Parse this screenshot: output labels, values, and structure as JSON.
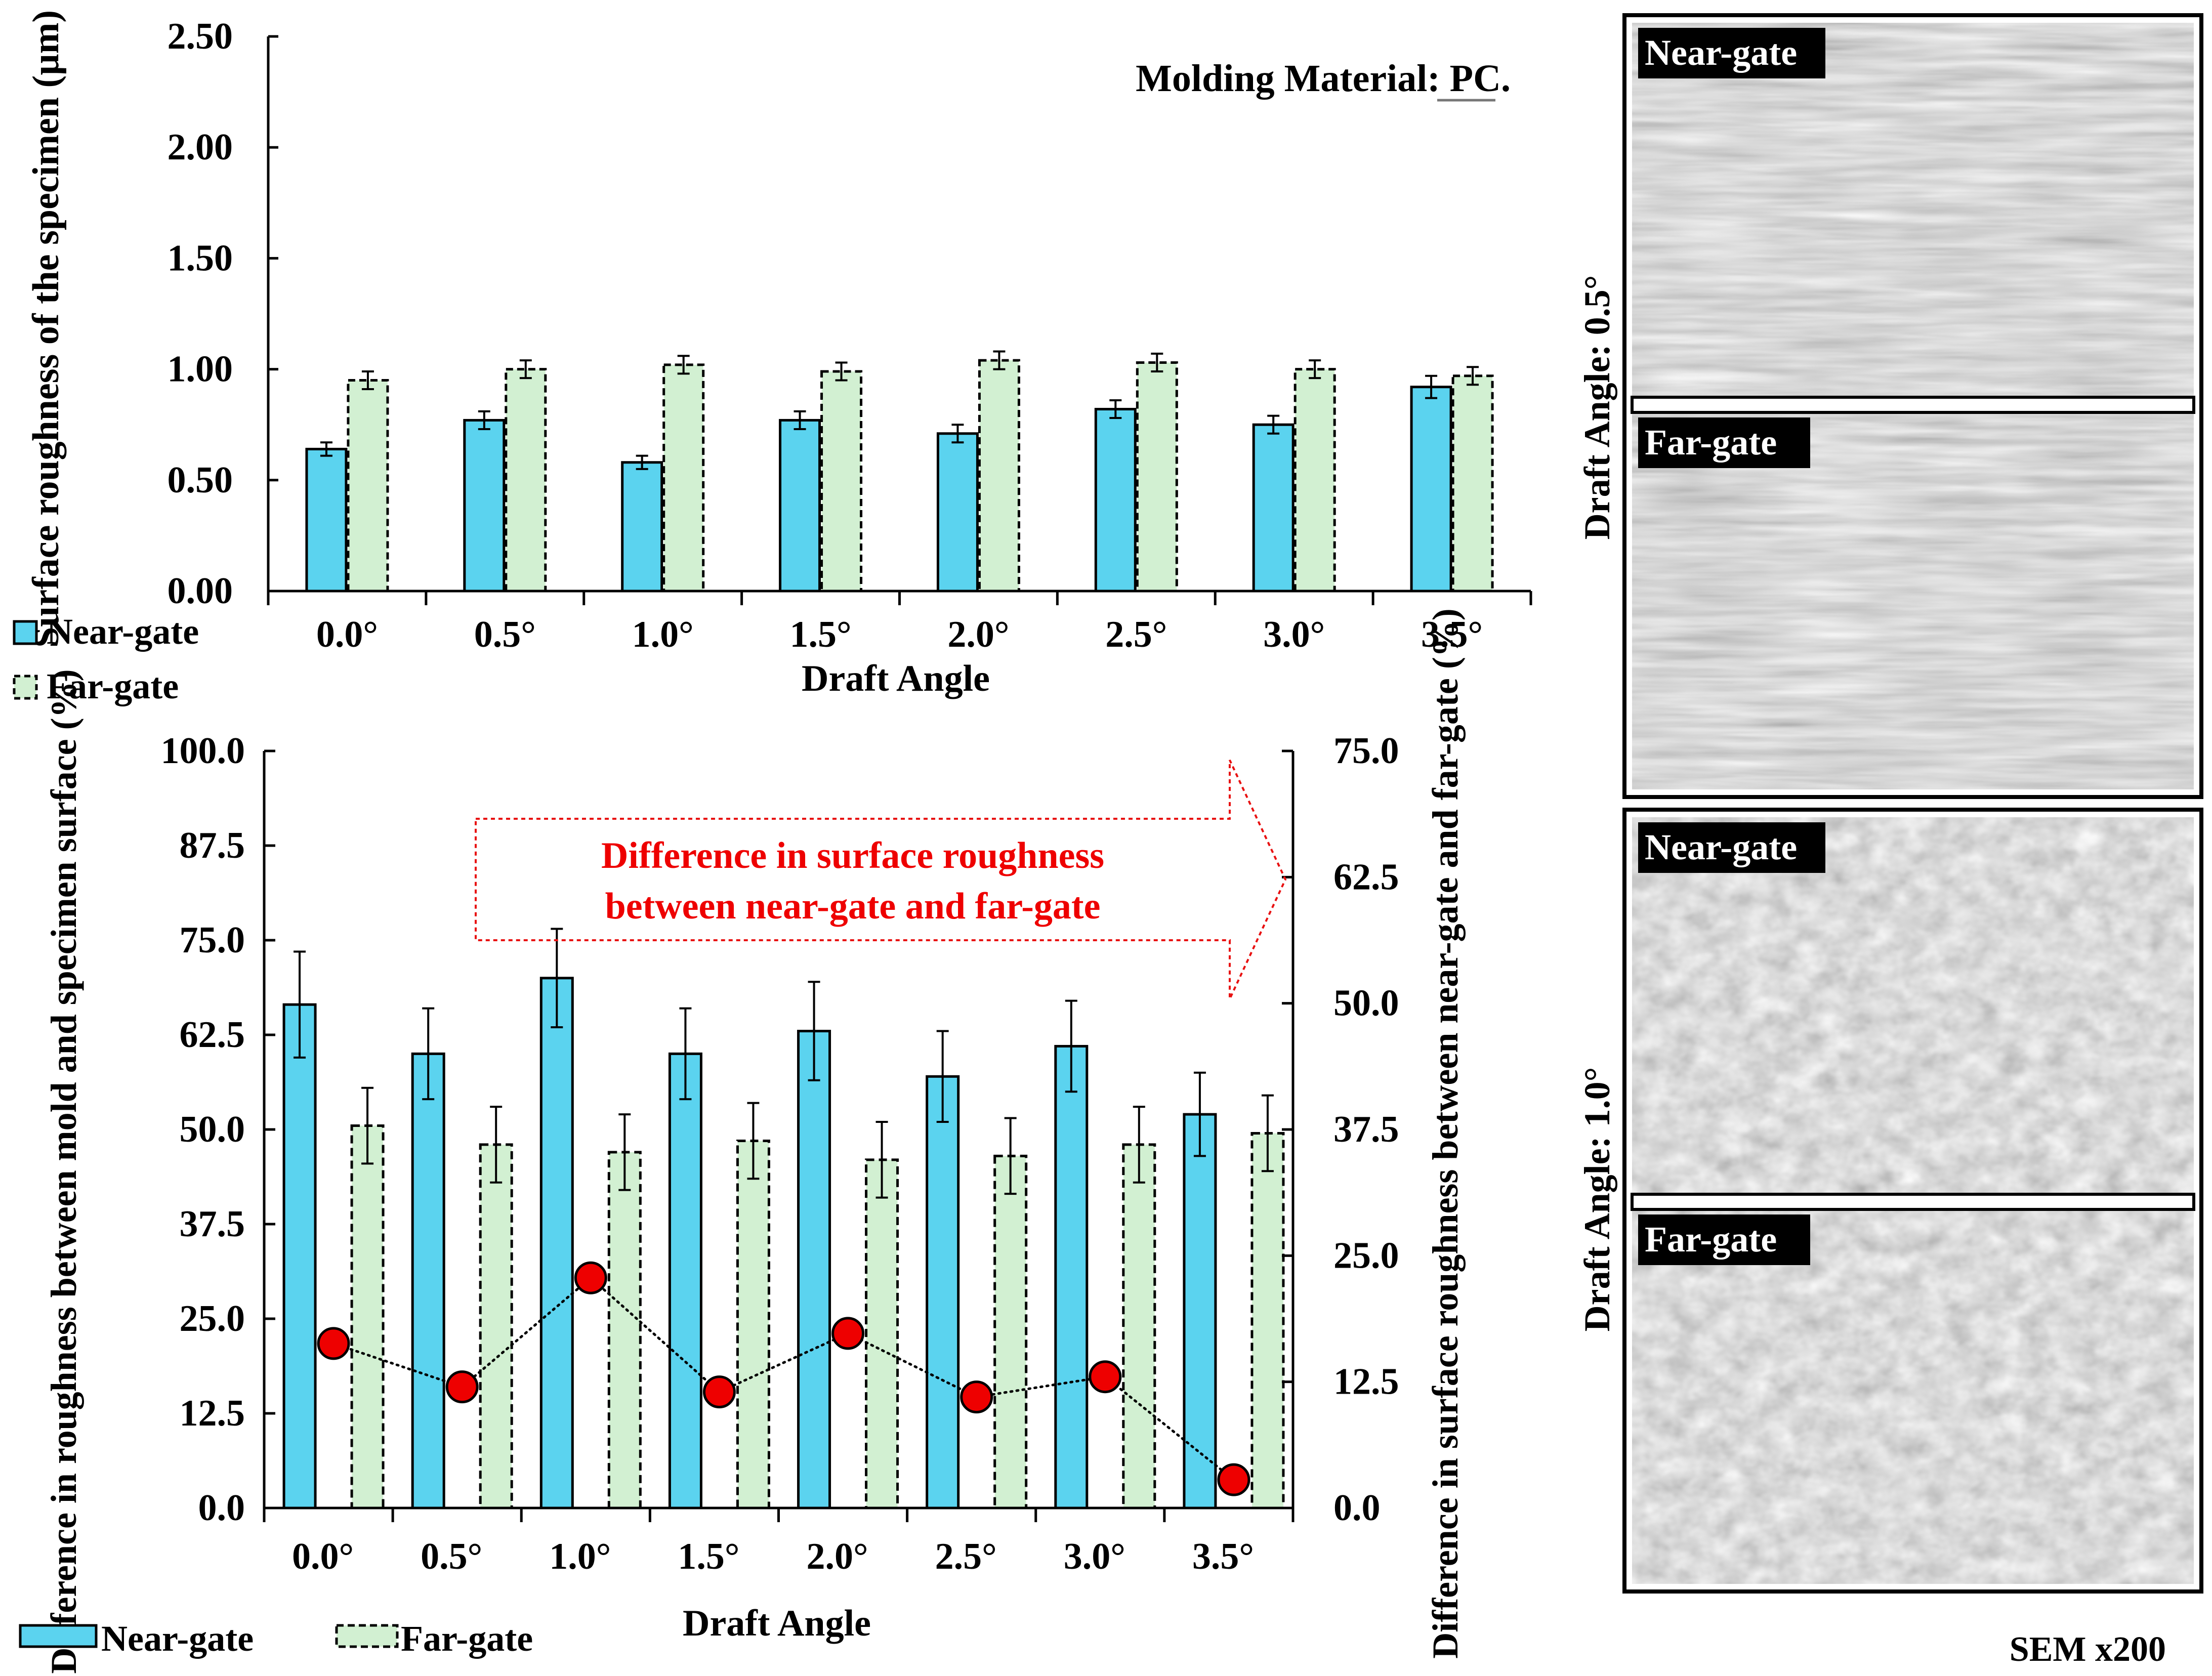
{
  "chart_data": [
    {
      "type": "bar",
      "categories": [
        "0.0°",
        "0.5°",
        "1.0°",
        "1.5°",
        "2.0°",
        "2.5°",
        "3.0°",
        "3.5°"
      ],
      "series": [
        {
          "name": "Near-gate",
          "values": [
            0.64,
            0.77,
            0.58,
            0.77,
            0.71,
            0.82,
            0.75,
            0.92
          ],
          "errors": [
            0.03,
            0.04,
            0.03,
            0.04,
            0.04,
            0.04,
            0.04,
            0.05
          ],
          "color": "#5bd3ef"
        },
        {
          "name": "Far-gate",
          "values": [
            0.95,
            1.0,
            1.02,
            0.99,
            1.04,
            1.03,
            1.0,
            0.97
          ],
          "errors": [
            0.04,
            0.04,
            0.04,
            0.04,
            0.04,
            0.04,
            0.04,
            0.04
          ],
          "color": "#d2f0d2"
        }
      ],
      "title": "Molding Material: PC.",
      "xlabel": "Draft Angle",
      "ylabel": "Surface roughness of the specimen (µm)",
      "ylim": [
        0,
        2.5
      ],
      "yticks": [
        "0.00",
        "0.50",
        "1.00",
        "1.50",
        "2.00",
        "2.50"
      ],
      "legend": "left"
    },
    {
      "type": "bar",
      "categories": [
        "0.0°",
        "0.5°",
        "1.0°",
        "1.5°",
        "2.0°",
        "2.5°",
        "3.0°",
        "3.5°"
      ],
      "series": [
        {
          "name": "Near-gate",
          "values": [
            66.5,
            60,
            70,
            60,
            63,
            57,
            61,
            52
          ],
          "errors": [
            7,
            6,
            6.5,
            6,
            6.5,
            6,
            6,
            5.5
          ],
          "color": "#5bd3ef"
        },
        {
          "name": "Far-gate",
          "values": [
            50.5,
            48,
            47,
            48.5,
            46,
            46.5,
            48,
            49.5
          ],
          "errors": [
            5,
            5,
            5,
            5,
            5,
            5,
            5,
            5
          ],
          "color": "#d2f0d2"
        },
        {
          "name": "Difference in surface roughness between near-gate and far-gate",
          "type": "line",
          "axis": "right",
          "values": [
            16.3,
            12,
            22.8,
            11.5,
            17.3,
            11,
            13,
            2.8
          ],
          "color": "#ee0000"
        }
      ],
      "xlabel": "Draft Angle",
      "ylabel": "Difference in roughness between mold and specimen surface (%)",
      "ylabel_right": "Difference in surface roughness between near-gate and far-gate (%)",
      "ylim": [
        0,
        100
      ],
      "ylim_right": [
        0,
        75
      ],
      "yticks": [
        "0.0",
        "12.5",
        "25.0",
        "37.5",
        "50.0",
        "62.5",
        "75.0",
        "87.5",
        "100.0"
      ],
      "yticks_right": [
        "0.0",
        "12.5",
        "25.0",
        "37.5",
        "50.0",
        "62.5",
        "75.0"
      ],
      "annotation_line1": "Difference in surface roughness",
      "annotation_line2": "between near-gate and far-gate",
      "legend": "bottom"
    }
  ],
  "sem": {
    "angle1": "Draft Angle: 0.5°",
    "angle2": "Draft Angle: 1.0°",
    "near": "Near-gate",
    "far": "Far-gate",
    "caption": "SEM x200"
  }
}
